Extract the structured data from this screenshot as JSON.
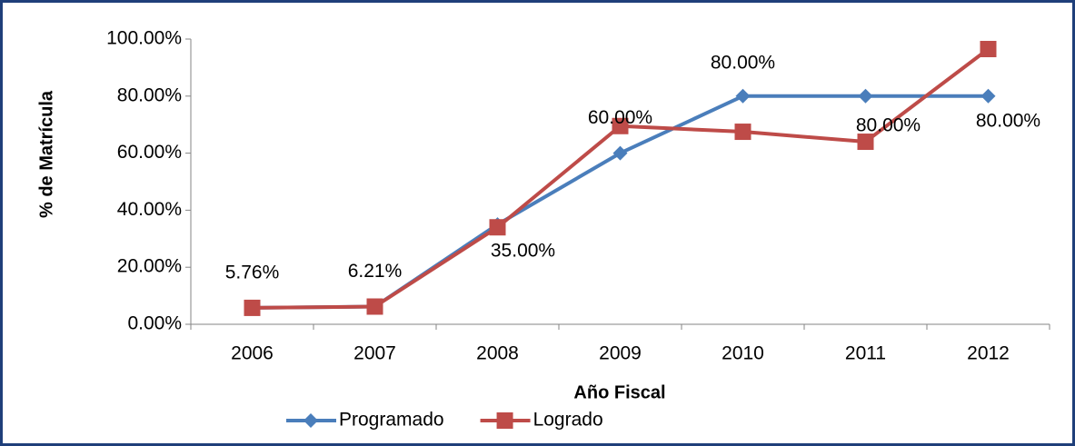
{
  "chart_data": {
    "type": "line",
    "x_label": "Año Fiscal",
    "y_label": "% de Matrícula",
    "categories": [
      "2006",
      "2007",
      "2008",
      "2009",
      "2010",
      "2011",
      "2012"
    ],
    "series": [
      {
        "name": "Programado",
        "color": "#4a7ebb",
        "marker": "diamond",
        "values": [
          5.76,
          6.21,
          35,
          60,
          80,
          80,
          80
        ],
        "value_labels": [
          "5.76%",
          "6.21%",
          "35.00%",
          "60.00%",
          "80.00%",
          "80.00%",
          "80.00%"
        ]
      },
      {
        "name": "Logrado",
        "color": "#be4b48",
        "marker": "square",
        "values": [
          5.76,
          6.21,
          34,
          69.5,
          67.5,
          64,
          96.5
        ]
      }
    ],
    "ylim": [
      0,
      100
    ],
    "yticks": [
      {
        "value": 0,
        "label": "0.00%"
      },
      {
        "value": 20,
        "label": "20.00%"
      },
      {
        "value": 40,
        "label": "40.00%"
      },
      {
        "value": 60,
        "label": "60.00%"
      },
      {
        "value": 80,
        "label": "80.00%"
      },
      {
        "value": 100,
        "label": "100.00%"
      }
    ],
    "legend": "bottom"
  }
}
